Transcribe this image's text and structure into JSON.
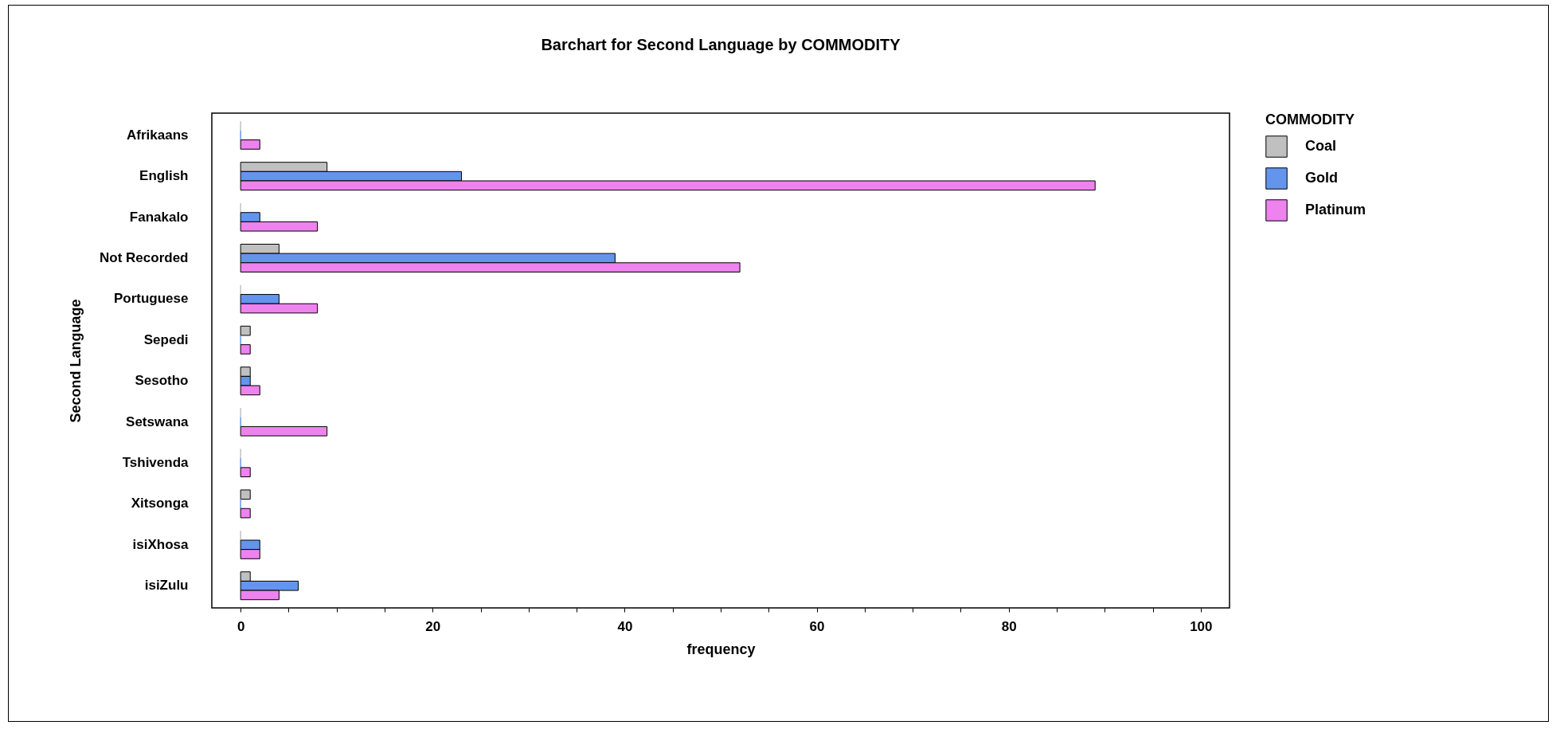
{
  "chart_data": {
    "type": "bar",
    "orientation": "horizontal",
    "title": "Barchart for Second Language by COMMODITY",
    "xlabel": "frequency",
    "ylabel": "Second Language",
    "legend_title": "COMMODITY",
    "legend": "top right",
    "grid": false,
    "categories": [
      "Afrikaans",
      "English",
      "Fanakalo",
      "Not Recorded",
      "Portuguese",
      "Sepedi",
      "Sesotho",
      "Setswana",
      "Tshivenda",
      "Xitsonga",
      "isiXhosa",
      "isiZulu"
    ],
    "series": [
      {
        "name": "Coal",
        "color": "#c0c0c0",
        "values": [
          0,
          9,
          0,
          4,
          0,
          1,
          1,
          0,
          0,
          1,
          0,
          1
        ]
      },
      {
        "name": "Gold",
        "color": "#6495ed",
        "values": [
          0,
          23,
          2,
          39,
          4,
          0,
          1,
          0,
          0,
          0,
          2,
          6
        ]
      },
      {
        "name": "Platinum",
        "color": "#ee82ee",
        "values": [
          2,
          89,
          8,
          52,
          8,
          1,
          2,
          9,
          1,
          1,
          2,
          4
        ]
      }
    ],
    "xlim": [
      -3,
      103
    ],
    "xticks": [
      0,
      {
        "value": 5,
        "label": null
      },
      {
        "value": 10,
        "label": null
      },
      {
        "value": 15,
        "label": null
      },
      20,
      {
        "value": 25,
        "label": null
      },
      {
        "value": 30,
        "label": null
      },
      {
        "value": 35,
        "label": null
      },
      40,
      {
        "value": 45,
        "label": null
      },
      {
        "value": 50,
        "label": null
      },
      {
        "value": 55,
        "label": null
      },
      60,
      {
        "value": 65,
        "label": null
      },
      {
        "value": 70,
        "label": null
      },
      {
        "value": 75,
        "label": null
      },
      80,
      {
        "value": 85,
        "label": null
      },
      {
        "value": 90,
        "label": null
      },
      {
        "value": 95,
        "label": null
      },
      100
    ]
  }
}
